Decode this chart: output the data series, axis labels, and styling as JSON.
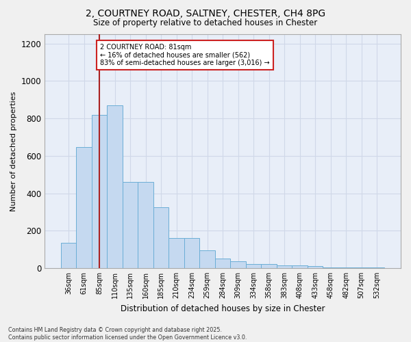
{
  "title_line1": "2, COURTNEY ROAD, SALTNEY, CHESTER, CH4 8PG",
  "title_line2": "Size of property relative to detached houses in Chester",
  "xlabel": "Distribution of detached houses by size in Chester",
  "ylabel": "Number of detached properties",
  "categories": [
    "36sqm",
    "61sqm",
    "85sqm",
    "110sqm",
    "135sqm",
    "160sqm",
    "185sqm",
    "210sqm",
    "234sqm",
    "259sqm",
    "284sqm",
    "309sqm",
    "334sqm",
    "358sqm",
    "383sqm",
    "408sqm",
    "433sqm",
    "458sqm",
    "482sqm",
    "507sqm",
    "532sqm"
  ],
  "values": [
    135,
    645,
    820,
    870,
    460,
    460,
    325,
    160,
    160,
    95,
    50,
    35,
    20,
    20,
    15,
    15,
    10,
    5,
    5,
    5,
    3
  ],
  "bar_color": "#c5d9f0",
  "bar_edge_color": "#6baed6",
  "background_color": "#e8eef8",
  "grid_color": "#d0d8e8",
  "vline_x": 2.0,
  "vline_color": "#aa2222",
  "annotation_text": "2 COURTNEY ROAD: 81sqm\n← 16% of detached houses are smaller (562)\n83% of semi-detached houses are larger (3,016) →",
  "annotation_box_color": "#cc2222",
  "ylim": [
    0,
    1250
  ],
  "yticks": [
    0,
    200,
    400,
    600,
    800,
    1000,
    1200
  ],
  "footer_line1": "Contains HM Land Registry data © Crown copyright and database right 2025.",
  "footer_line2": "Contains public sector information licensed under the Open Government Licence v3.0."
}
